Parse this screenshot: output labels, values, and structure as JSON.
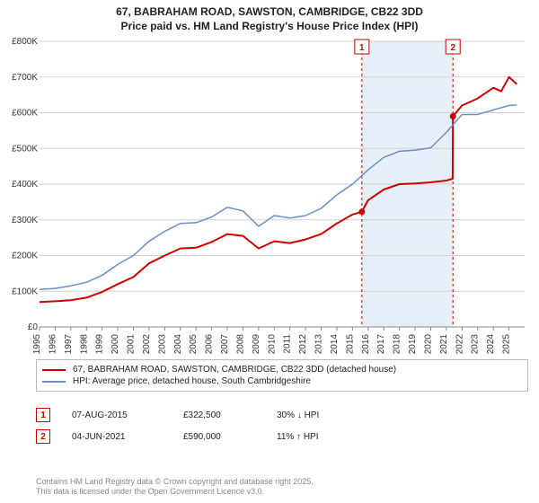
{
  "title_line1": "67, BABRAHAM ROAD, SAWSTON, CAMBRIDGE, CB22 3DD",
  "title_line2": "Price paid vs. HM Land Registry's House Price Index (HPI)",
  "chart": {
    "type": "line",
    "background_color": "#ffffff",
    "grid_color": "#d0d0d0",
    "xlim": [
      1995,
      2026
    ],
    "ylim": [
      0,
      800000
    ],
    "ytick_step": 100000,
    "xtick_step": 1,
    "y_ticks": [
      "£0",
      "£100K",
      "£200K",
      "£300K",
      "£400K",
      "£500K",
      "£600K",
      "£700K",
      "£800K"
    ],
    "x_ticks": [
      "1995",
      "1996",
      "1997",
      "1998",
      "1999",
      "2000",
      "2001",
      "2002",
      "2003",
      "2004",
      "2005",
      "2006",
      "2007",
      "2008",
      "2009",
      "2010",
      "2011",
      "2012",
      "2013",
      "2014",
      "2015",
      "2016",
      "2017",
      "2018",
      "2019",
      "2020",
      "2021",
      "2022",
      "2023",
      "2024",
      "2025"
    ],
    "highlight_band": {
      "x_from": 2015.6,
      "x_to": 2021.42,
      "color": "#e6eef8"
    },
    "markers": [
      {
        "label": "1",
        "x": 2015.6,
        "value": 322500,
        "box_color": "#cc0000"
      },
      {
        "label": "2",
        "x": 2021.42,
        "value": 590000,
        "box_color": "#cc0000"
      }
    ],
    "series": [
      {
        "name": "price_paid",
        "label": "67, BABRAHAM ROAD, SAWSTON, CAMBRIDGE, CB22 3DD (detached house)",
        "color": "#cc0000",
        "line_width": 2,
        "points": [
          [
            1995,
            70000
          ],
          [
            1996,
            72000
          ],
          [
            1997,
            75000
          ],
          [
            1998,
            82000
          ],
          [
            1999,
            98000
          ],
          [
            2000,
            120000
          ],
          [
            2001,
            140000
          ],
          [
            2002,
            178000
          ],
          [
            2003,
            200000
          ],
          [
            2004,
            220000
          ],
          [
            2005,
            222000
          ],
          [
            2006,
            238000
          ],
          [
            2007,
            260000
          ],
          [
            2008,
            255000
          ],
          [
            2009,
            220000
          ],
          [
            2010,
            240000
          ],
          [
            2011,
            235000
          ],
          [
            2012,
            245000
          ],
          [
            2013,
            260000
          ],
          [
            2014,
            290000
          ],
          [
            2015,
            315000
          ],
          [
            2015.6,
            322500
          ],
          [
            2016,
            355000
          ],
          [
            2017,
            385000
          ],
          [
            2018,
            400000
          ],
          [
            2019,
            402000
          ],
          [
            2020,
            405000
          ],
          [
            2021,
            410000
          ],
          [
            2021.4,
            415000
          ],
          [
            2021.42,
            590000
          ],
          [
            2022,
            620000
          ],
          [
            2023,
            640000
          ],
          [
            2024,
            670000
          ],
          [
            2024.5,
            660000
          ],
          [
            2025,
            700000
          ],
          [
            2025.5,
            680000
          ]
        ]
      },
      {
        "name": "hpi",
        "label": "HPI: Average price, detached house, South Cambridgeshire",
        "color": "#6a8fc5",
        "line_width": 1.5,
        "points": [
          [
            1995,
            105000
          ],
          [
            1996,
            108000
          ],
          [
            1997,
            115000
          ],
          [
            1998,
            125000
          ],
          [
            1999,
            145000
          ],
          [
            2000,
            175000
          ],
          [
            2001,
            200000
          ],
          [
            2002,
            240000
          ],
          [
            2003,
            268000
          ],
          [
            2004,
            290000
          ],
          [
            2005,
            292000
          ],
          [
            2006,
            308000
          ],
          [
            2007,
            335000
          ],
          [
            2008,
            325000
          ],
          [
            2009,
            282000
          ],
          [
            2010,
            312000
          ],
          [
            2011,
            305000
          ],
          [
            2012,
            312000
          ],
          [
            2013,
            332000
          ],
          [
            2014,
            370000
          ],
          [
            2015,
            400000
          ],
          [
            2016,
            440000
          ],
          [
            2017,
            475000
          ],
          [
            2018,
            492000
          ],
          [
            2019,
            495000
          ],
          [
            2020,
            502000
          ],
          [
            2021,
            545000
          ],
          [
            2022,
            595000
          ],
          [
            2023,
            595000
          ],
          [
            2024,
            608000
          ],
          [
            2025,
            620000
          ],
          [
            2025.5,
            622000
          ]
        ]
      }
    ],
    "marker_dot": {
      "radius": 3.5,
      "fill": "#cc0000"
    },
    "marker_line": {
      "color": "#cc0000",
      "dash": "3,3",
      "width": 1
    }
  },
  "legend": {
    "items": [
      {
        "color": "#cc0000",
        "label": "67, BABRAHAM ROAD, SAWSTON, CAMBRIDGE, CB22 3DD (detached house)"
      },
      {
        "color": "#6a8fc5",
        "label": "HPI: Average price, detached house, South Cambridgeshire"
      }
    ]
  },
  "events": [
    {
      "num": "1",
      "date": "07-AUG-2015",
      "price": "£322,500",
      "diff": "30% ↓ HPI"
    },
    {
      "num": "2",
      "date": "04-JUN-2021",
      "price": "£590,000",
      "diff": "11% ↑ HPI"
    }
  ],
  "credits_line1": "Contains HM Land Registry data © Crown copyright and database right 2025.",
  "credits_line2": "This data is licensed under the Open Government Licence v3.0."
}
